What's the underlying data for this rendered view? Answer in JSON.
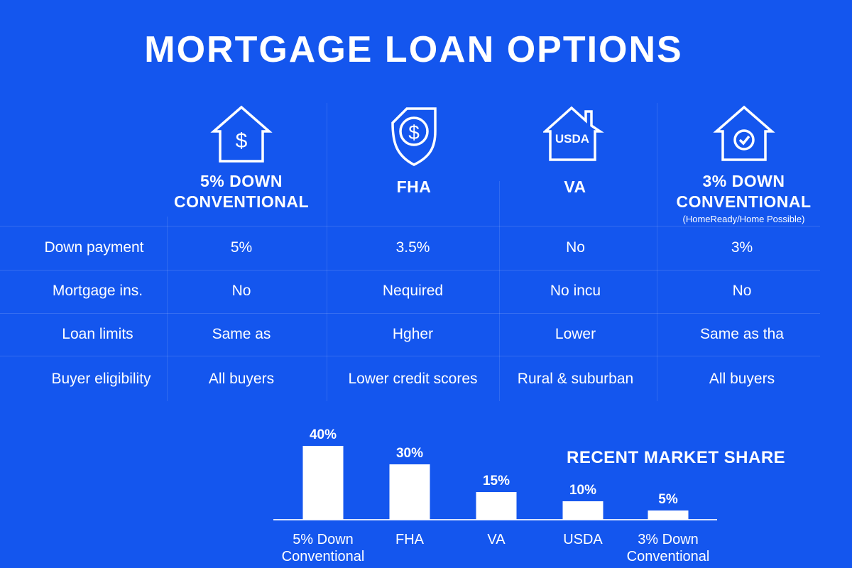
{
  "title": "MORTGAGE LOAN OPTIONS",
  "columns": [
    {
      "icon": "house-dollar-icon",
      "title_lines": [
        "5% DOWN",
        "CONVENTIONAL"
      ],
      "subtitle": ""
    },
    {
      "icon": "shield-dollar-icon",
      "title_lines": [
        "FHA"
      ],
      "subtitle": ""
    },
    {
      "icon": "house-usda-icon",
      "icon_text": "USDA",
      "title_lines": [
        "VA"
      ],
      "subtitle": ""
    },
    {
      "icon": "house-check-icon",
      "title_lines": [
        "3% DOWN",
        "CONVENTIONAL"
      ],
      "subtitle": "(HomeReady/Home Possible)"
    }
  ],
  "rows": [
    {
      "label": "Down payment",
      "values": [
        "5%",
        "3.5%",
        "No",
        "3%"
      ]
    },
    {
      "label": "Mortgage ins.",
      "values": [
        "No",
        "Nequired",
        "No incu",
        "No"
      ]
    },
    {
      "label": "Loan limits",
      "values": [
        "Same as",
        "Hgher",
        "Lower",
        "Same as tha"
      ]
    },
    {
      "label": "Buyer eligibility",
      "values": [
        "All buyers",
        "Lower credit scores",
        "Rural & suburban",
        "All buyers"
      ]
    }
  ],
  "chart_data": {
    "type": "bar",
    "title": "RECENT MARKET SHARE",
    "categories": [
      [
        "5% Down",
        "Conventional"
      ],
      [
        "FHA"
      ],
      [
        "VA"
      ],
      [
        "USDA"
      ],
      [
        "3% Down",
        "Conventional"
      ]
    ],
    "values": [
      40,
      30,
      15,
      10,
      5
    ],
    "data_labels": [
      "40%",
      "30%",
      "15%",
      "10%",
      "5%"
    ],
    "unit": "%",
    "xlabel": "",
    "ylabel": "",
    "grid": false,
    "bar_color": "#ffffff"
  },
  "colors": {
    "background": "#1456ee",
    "foreground": "#ffffff"
  }
}
